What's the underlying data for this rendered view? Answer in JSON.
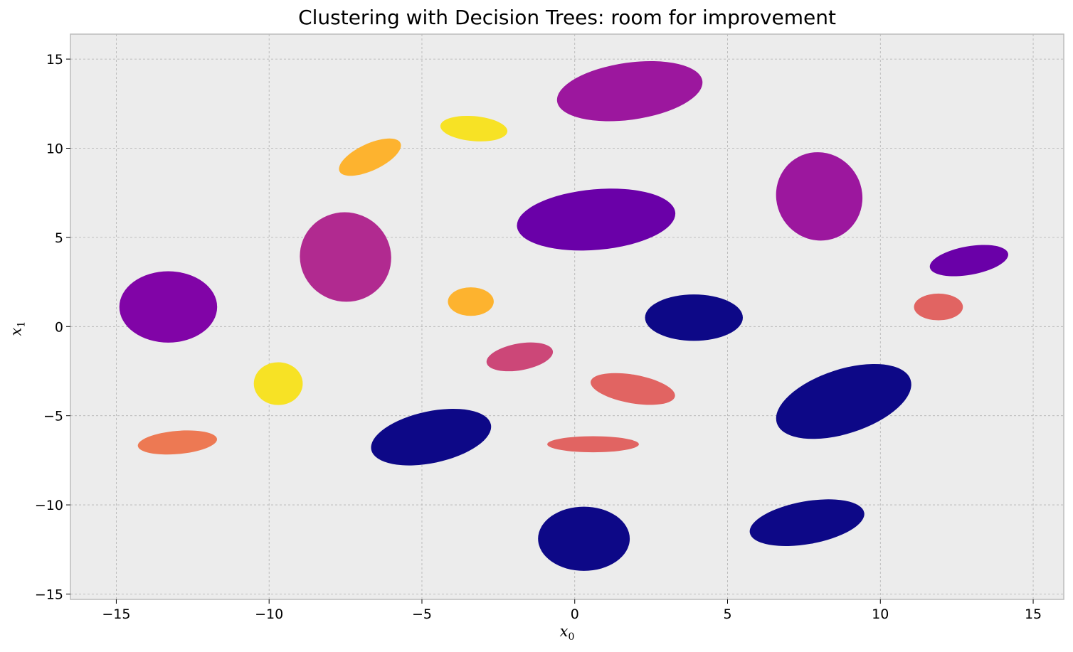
{
  "chart_data": {
    "type": "scatter",
    "title": "Clustering with Decision Trees: room for improvement",
    "xlabel": "x",
    "xlabel_sub": "0",
    "ylabel": "x",
    "ylabel_sub": "1",
    "xlim": [
      -16.5,
      16.0
    ],
    "ylim": [
      -15.3,
      16.4
    ],
    "xticks": [
      -15,
      -10,
      -5,
      0,
      5,
      10,
      15
    ],
    "yticks": [
      -15,
      -10,
      -5,
      0,
      5,
      10,
      15
    ],
    "xtick_labels": [
      "−15",
      "−10",
      "−5",
      "0",
      "5",
      "10",
      "15"
    ],
    "ytick_labels": [
      "−15",
      "−10",
      "−5",
      "0",
      "5",
      "10",
      "15"
    ],
    "grid": true,
    "colormap": "plasma",
    "background": "#ececec",
    "clusters": [
      {
        "cx": 1.8,
        "cy": 13.2,
        "rx": 2.4,
        "ry": 1.6,
        "rot": -8,
        "color": "#9c179e"
      },
      {
        "cx": -3.3,
        "cy": 11.1,
        "rx": 1.1,
        "ry": 0.7,
        "rot": 5,
        "color": "#f7e225"
      },
      {
        "cx": -6.7,
        "cy": 9.5,
        "rx": 1.1,
        "ry": 0.75,
        "rot": -25,
        "color": "#fdb32f"
      },
      {
        "cx": 8.0,
        "cy": 7.3,
        "rx": 1.4,
        "ry": 2.5,
        "rot": -28,
        "color": "#9c179e"
      },
      {
        "cx": 0.7,
        "cy": 6.0,
        "rx": 2.6,
        "ry": 1.7,
        "rot": -5,
        "color": "#6a00a8"
      },
      {
        "cx": -7.5,
        "cy": 3.9,
        "rx": 1.5,
        "ry": 2.5,
        "rot": 22,
        "color": "#b12a90"
      },
      {
        "cx": -13.3,
        "cy": 1.1,
        "rx": 1.6,
        "ry": 2.0,
        "rot": 0,
        "color": "#8104a7"
      },
      {
        "cx": -3.4,
        "cy": 1.4,
        "rx": 0.75,
        "ry": 0.8,
        "rot": 0,
        "color": "#fdb32f"
      },
      {
        "cx": 3.9,
        "cy": 0.5,
        "rx": 1.6,
        "ry": 1.3,
        "rot": 0,
        "color": "#0d0887"
      },
      {
        "cx": 12.9,
        "cy": 3.7,
        "rx": 1.3,
        "ry": 0.8,
        "rot": -10,
        "color": "#6a00a8"
      },
      {
        "cx": 11.9,
        "cy": 1.1,
        "rx": 0.8,
        "ry": 0.75,
        "rot": 0,
        "color": "#e16462"
      },
      {
        "cx": -1.8,
        "cy": -1.7,
        "rx": 1.1,
        "ry": 0.75,
        "rot": -10,
        "color": "#cc4778"
      },
      {
        "cx": -9.7,
        "cy": -3.2,
        "rx": 0.8,
        "ry": 1.2,
        "rot": 0,
        "color": "#f7e225"
      },
      {
        "cx": 1.9,
        "cy": -3.5,
        "rx": 1.4,
        "ry": 0.8,
        "rot": 10,
        "color": "#e16462"
      },
      {
        "cx": 8.8,
        "cy": -4.2,
        "rx": 2.3,
        "ry": 1.8,
        "rot": -18,
        "color": "#0d0887"
      },
      {
        "cx": -13.0,
        "cy": -6.5,
        "rx": 1.3,
        "ry": 0.65,
        "rot": -5,
        "color": "#ed7953"
      },
      {
        "cx": -4.7,
        "cy": -6.2,
        "rx": 2.0,
        "ry": 1.45,
        "rot": -12,
        "color": "#0d0887"
      },
      {
        "cx": 0.6,
        "cy": -6.6,
        "rx": 1.5,
        "ry": 0.45,
        "rot": 0,
        "color": "#e16462"
      },
      {
        "cx": 0.3,
        "cy": -11.9,
        "rx": 1.5,
        "ry": 1.8,
        "rot": 0,
        "color": "#0d0887"
      },
      {
        "cx": 7.6,
        "cy": -11.0,
        "rx": 1.9,
        "ry": 1.2,
        "rot": -10,
        "color": "#0d0887"
      }
    ]
  }
}
